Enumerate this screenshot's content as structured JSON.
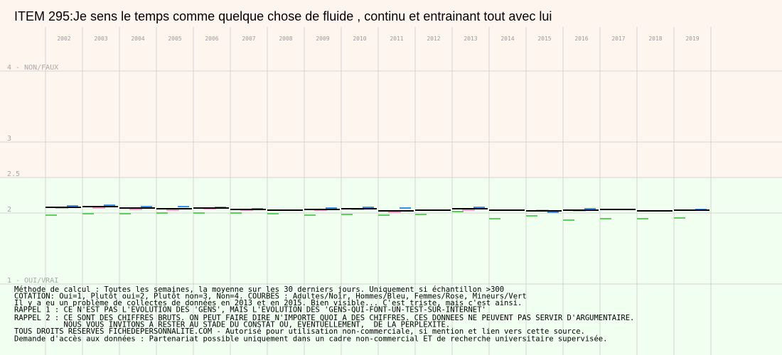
{
  "chart_data": {
    "type": "line",
    "title": "ITEM 295:Je sens le temps comme quelque chose de fluide , continu et entrainant tout avec lui",
    "categories": [
      "2002",
      "2003",
      "2004",
      "2005",
      "2006",
      "2007",
      "2008",
      "2009",
      "2010",
      "2011",
      "2012",
      "2013",
      "2014",
      "2015",
      "2016",
      "2017",
      "2018",
      "2019"
    ],
    "y_ticks": [
      {
        "value": 4,
        "label": "4 - NON/FAUX"
      },
      {
        "value": 3,
        "label": "3"
      },
      {
        "value": 2.5,
        "label": "2.5"
      },
      {
        "value": 2,
        "label": "2"
      },
      {
        "value": 1,
        "label": "1 - OUI/VRAI"
      }
    ],
    "ylim": [
      1,
      4
    ],
    "grid": true,
    "colors": {
      "upper_band": "#fff5ef",
      "lower_band": "#f0fff0",
      "grid": "#d4d4d4"
    },
    "series": [
      {
        "name": "Adultes",
        "color": "#000000",
        "values": [
          2.08,
          2.09,
          2.07,
          2.06,
          2.07,
          2.05,
          2.04,
          2.05,
          2.06,
          2.03,
          2.04,
          2.06,
          2.04,
          2.03,
          2.04,
          2.05,
          2.03,
          2.04
        ]
      },
      {
        "name": "Hommes",
        "color": "#3a8ee6",
        "values": [
          2.1,
          2.11,
          2.09,
          2.09,
          2.08,
          2.06,
          2.04,
          2.07,
          2.08,
          2.07,
          2.04,
          2.08,
          2.04,
          2.01,
          2.06,
          2.05,
          2.03,
          2.05
        ]
      },
      {
        "name": "Femmes",
        "color": "#f2a0c8",
        "values": [
          2.07,
          2.07,
          2.05,
          2.04,
          2.06,
          2.04,
          2.04,
          2.04,
          2.05,
          2.01,
          2.04,
          2.04,
          2.04,
          2.04,
          2.03,
          2.05,
          2.03,
          2.04
        ]
      },
      {
        "name": "Mineurs",
        "color": "#5fce5f",
        "values": [
          1.97,
          1.99,
          1.99,
          2.0,
          2.0,
          2.0,
          1.99,
          1.97,
          1.98,
          1.97,
          1.98,
          2.02,
          1.92,
          1.96,
          1.9,
          1.92,
          1.92,
          1.93
        ]
      }
    ]
  },
  "notes": [
    "Méthode de calcul : Toutes les semaines, la moyenne sur les 30 derniers jours. Uniquement si échantillon >300",
    "COTATION: Oui=1, Plutôt oui=2, Plutôt non=3, Non=4. COURBES : Adultes/Noir, Hommes/Bleu, Femmes/Rose, Mineurs/Vert",
    "Il y a eu un problème de collectes de données en 2013 et en 2015. Bien visible... C'est triste, mais c'est ainsi.",
    "RAPPEL 1 : CE N'EST PAS L'EVOLUTION DES 'GENS', MAIS L'EVOLUTION DES 'GENS-QUI-FONT-UN-TEST-SUR-INTERNET'",
    "RAPPEL 2 : CE SONT DES CHIFFRES BRUTS. ON PEUT FAIRE DIRE N'IMPORTE QUOI A DES CHIFFRES. CES DONNEES NE PEUVENT PAS SERVIR D'ARGUMENTAIRE.",
    "           NOUS VOUS INVITONS A RESTER AU STADE DU CONSTAT OU, EVENTUELLEMENT,  DE LA PERPLEXITE.",
    "TOUS DROITS RESERVES FICHEDEPERSONNALITE.COM - Autorisé pour utilisation non-commerciale, si mention et lien vers cette source.",
    "Demande d'accès aux données : Partenariat possible uniquement dans un cadre non-commercial ET de recherche universitaire supervisée."
  ]
}
